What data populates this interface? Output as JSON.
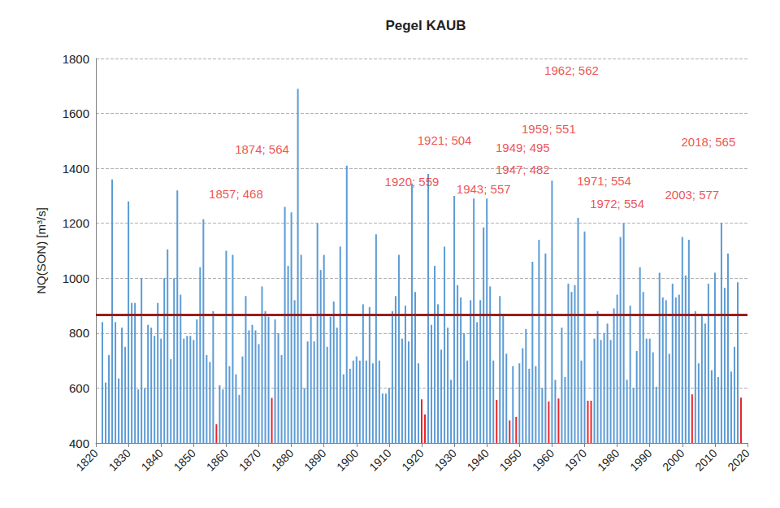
{
  "chart_data": {
    "type": "bar",
    "title": "Pegel KAUB",
    "y_label": "NQ(SON) [m³/s]",
    "xlim": [
      1820,
      2020
    ],
    "xticks": [
      1820,
      1830,
      1840,
      1850,
      1860,
      1870,
      1880,
      1890,
      1900,
      1910,
      1920,
      1930,
      1940,
      1950,
      1960,
      1970,
      1980,
      1990,
      2000,
      2010,
      2020
    ],
    "ylim": [
      400,
      1800
    ],
    "yticks": [
      400,
      600,
      800,
      1000,
      1200,
      1400,
      1600,
      1800
    ],
    "grid": true,
    "x": [
      1822,
      1823,
      1824,
      1825,
      1826,
      1827,
      1828,
      1829,
      1830,
      1831,
      1832,
      1833,
      1834,
      1835,
      1836,
      1837,
      1838,
      1839,
      1840,
      1841,
      1842,
      1843,
      1844,
      1845,
      1846,
      1847,
      1848,
      1849,
      1850,
      1851,
      1852,
      1853,
      1854,
      1855,
      1856,
      1857,
      1858,
      1859,
      1860,
      1861,
      1862,
      1863,
      1864,
      1865,
      1866,
      1867,
      1868,
      1869,
      1870,
      1871,
      1872,
      1873,
      1874,
      1875,
      1876,
      1877,
      1878,
      1879,
      1880,
      1881,
      1882,
      1883,
      1884,
      1885,
      1886,
      1887,
      1888,
      1889,
      1890,
      1891,
      1892,
      1893,
      1894,
      1895,
      1896,
      1897,
      1898,
      1899,
      1900,
      1901,
      1902,
      1903,
      1904,
      1905,
      1906,
      1907,
      1908,
      1909,
      1910,
      1911,
      1912,
      1913,
      1914,
      1915,
      1916,
      1917,
      1918,
      1919,
      1920,
      1921,
      1922,
      1923,
      1924,
      1925,
      1926,
      1927,
      1928,
      1929,
      1930,
      1931,
      1932,
      1933,
      1934,
      1935,
      1936,
      1937,
      1938,
      1939,
      1940,
      1941,
      1942,
      1943,
      1944,
      1945,
      1946,
      1947,
      1948,
      1949,
      1950,
      1951,
      1952,
      1953,
      1954,
      1955,
      1956,
      1957,
      1958,
      1959,
      1960,
      1961,
      1962,
      1963,
      1964,
      1965,
      1966,
      1967,
      1968,
      1969,
      1970,
      1971,
      1972,
      1973,
      1974,
      1975,
      1976,
      1977,
      1978,
      1979,
      1980,
      1981,
      1982,
      1983,
      1984,
      1985,
      1986,
      1987,
      1988,
      1989,
      1990,
      1991,
      1992,
      1993,
      1994,
      1995,
      1996,
      1997,
      1998,
      1999,
      2000,
      2001,
      2002,
      2003,
      2004,
      2005,
      2006,
      2007,
      2008,
      2009,
      2010,
      2011,
      2012,
      2013,
      2014,
      2015,
      2016,
      2017,
      2018
    ],
    "values": [
      840,
      620,
      720,
      1360,
      840,
      635,
      820,
      750,
      1280,
      910,
      910,
      595,
      1000,
      600,
      830,
      820,
      790,
      910,
      780,
      1000,
      1105,
      705,
      1000,
      1320,
      940,
      780,
      790,
      790,
      775,
      850,
      1040,
      1215,
      720,
      695,
      880,
      468,
      610,
      595,
      1100,
      680,
      1085,
      650,
      575,
      715,
      935,
      810,
      830,
      810,
      760,
      970,
      880,
      860,
      564,
      850,
      800,
      720,
      1260,
      1045,
      1240,
      920,
      1690,
      1085,
      600,
      770,
      860,
      770,
      1200,
      1030,
      1085,
      750,
      860,
      915,
      820,
      1115,
      650,
      1410,
      670,
      700,
      715,
      700,
      905,
      700,
      895,
      690,
      1160,
      700,
      580,
      580,
      600,
      880,
      935,
      1085,
      780,
      900,
      770,
      1345,
      950,
      690,
      559,
      504,
      1380,
      830,
      1045,
      905,
      740,
      1115,
      820,
      630,
      1300,
      975,
      930,
      800,
      700,
      920,
      1290,
      840,
      920,
      1185,
      1290,
      970,
      700,
      557,
      935,
      870,
      725,
      482,
      680,
      495,
      690,
      745,
      815,
      670,
      1060,
      680,
      1140,
      600,
      1090,
      551,
      1355,
      630,
      562,
      820,
      640,
      980,
      950,
      975,
      1220,
      700,
      1170,
      554,
      554,
      780,
      880,
      775,
      800,
      835,
      775,
      890,
      940,
      1150,
      1200,
      630,
      900,
      600,
      735,
      1040,
      950,
      780,
      780,
      730,
      605,
      1020,
      930,
      920,
      725,
      980,
      930,
      940,
      1150,
      1010,
      1140,
      577,
      880,
      690,
      870,
      835,
      980,
      665,
      1020,
      640,
      1200,
      965,
      1090,
      660,
      750,
      985,
      565
    ],
    "colors": [
      "#5b9bd5",
      "#5b9bd5",
      "#5b9bd5",
      "#5b9bd5",
      "#5b9bd5",
      "#5b9bd5",
      "#5b9bd5",
      "#5b9bd5",
      "#5b9bd5",
      "#5b9bd5",
      "#5b9bd5",
      "#5b9bd5",
      "#5b9bd5",
      "#5b9bd5",
      "#5b9bd5",
      "#5b9bd5",
      "#5b9bd5",
      "#5b9bd5",
      "#5b9bd5",
      "#5b9bd5",
      "#5b9bd5",
      "#5b9bd5",
      "#5b9bd5",
      "#5b9bd5",
      "#5b9bd5",
      "#5b9bd5",
      "#5b9bd5",
      "#5b9bd5",
      "#5b9bd5",
      "#5b9bd5",
      "#5b9bd5",
      "#5b9bd5",
      "#5b9bd5",
      "#5b9bd5",
      "#5b9bd5",
      "#e8262a",
      "#5b9bd5",
      "#5b9bd5",
      "#5b9bd5",
      "#5b9bd5",
      "#5b9bd5",
      "#5b9bd5",
      "#5b9bd5",
      "#5b9bd5",
      "#5b9bd5",
      "#5b9bd5",
      "#5b9bd5",
      "#5b9bd5",
      "#5b9bd5",
      "#5b9bd5",
      "#5b9bd5",
      "#5b9bd5",
      "#e8262a",
      "#5b9bd5",
      "#5b9bd5",
      "#5b9bd5",
      "#5b9bd5",
      "#5b9bd5",
      "#5b9bd5",
      "#5b9bd5",
      "#5b9bd5",
      "#5b9bd5",
      "#5b9bd5",
      "#5b9bd5",
      "#5b9bd5",
      "#5b9bd5",
      "#5b9bd5",
      "#5b9bd5",
      "#5b9bd5",
      "#5b9bd5",
      "#5b9bd5",
      "#5b9bd5",
      "#5b9bd5",
      "#5b9bd5",
      "#5b9bd5",
      "#5b9bd5",
      "#5b9bd5",
      "#5b9bd5",
      "#5b9bd5",
      "#5b9bd5",
      "#5b9bd5",
      "#5b9bd5",
      "#5b9bd5",
      "#5b9bd5",
      "#5b9bd5",
      "#5b9bd5",
      "#5b9bd5",
      "#5b9bd5",
      "#5b9bd5",
      "#5b9bd5",
      "#5b9bd5",
      "#5b9bd5",
      "#5b9bd5",
      "#5b9bd5",
      "#5b9bd5",
      "#5b9bd5",
      "#5b9bd5",
      "#5b9bd5",
      "#e8262a",
      "#e8262a",
      "#5b9bd5",
      "#5b9bd5",
      "#5b9bd5",
      "#5b9bd5",
      "#5b9bd5",
      "#5b9bd5",
      "#5b9bd5",
      "#5b9bd5",
      "#5b9bd5",
      "#5b9bd5",
      "#5b9bd5",
      "#5b9bd5",
      "#5b9bd5",
      "#5b9bd5",
      "#5b9bd5",
      "#5b9bd5",
      "#5b9bd5",
      "#5b9bd5",
      "#5b9bd5",
      "#5b9bd5",
      "#5b9bd5",
      "#e8262a",
      "#5b9bd5",
      "#5b9bd5",
      "#5b9bd5",
      "#e8262a",
      "#5b9bd5",
      "#e8262a",
      "#5b9bd5",
      "#5b9bd5",
      "#5b9bd5",
      "#5b9bd5",
      "#5b9bd5",
      "#5b9bd5",
      "#5b9bd5",
      "#5b9bd5",
      "#5b9bd5",
      "#e8262a",
      "#5b9bd5",
      "#5b9bd5",
      "#e8262a",
      "#5b9bd5",
      "#5b9bd5",
      "#5b9bd5",
      "#5b9bd5",
      "#5b9bd5",
      "#5b9bd5",
      "#5b9bd5",
      "#5b9bd5",
      "#e8262a",
      "#e8262a",
      "#5b9bd5",
      "#5b9bd5",
      "#5b9bd5",
      "#5b9bd5",
      "#5b9bd5",
      "#5b9bd5",
      "#5b9bd5",
      "#5b9bd5",
      "#5b9bd5",
      "#5b9bd5",
      "#5b9bd5",
      "#5b9bd5",
      "#5b9bd5",
      "#5b9bd5",
      "#5b9bd5",
      "#5b9bd5",
      "#5b9bd5",
      "#5b9bd5",
      "#5b9bd5",
      "#5b9bd5",
      "#5b9bd5",
      "#5b9bd5",
      "#5b9bd5",
      "#5b9bd5",
      "#5b9bd5",
      "#5b9bd5",
      "#5b9bd5",
      "#5b9bd5",
      "#5b9bd5",
      "#5b9bd5",
      "#e8262a",
      "#5b9bd5",
      "#5b9bd5",
      "#5b9bd5",
      "#5b9bd5",
      "#5b9bd5",
      "#5b9bd5",
      "#5b9bd5",
      "#5b9bd5",
      "#5b9bd5",
      "#5b9bd5",
      "#5b9bd5",
      "#5b9bd5",
      "#5b9bd5",
      "#5b9bd5",
      "#e8262a"
    ],
    "mean_line": {
      "value": 868,
      "color": "#9b1c1c"
    },
    "annotations": [
      {
        "text": "1857; 468",
        "x": 1863,
        "y": 1306
      },
      {
        "text": "1874; 564",
        "x": 1871,
        "y": 1469
      },
      {
        "text": "1920; 559",
        "x": 1917,
        "y": 1353
      },
      {
        "text": "1921; 504",
        "x": 1927,
        "y": 1504
      },
      {
        "text": "1943; 557",
        "x": 1939,
        "y": 1326
      },
      {
        "text": "1949; 495",
        "x": 1951,
        "y": 1477
      },
      {
        "text": "1947; 482",
        "x": 1951,
        "y": 1397
      },
      {
        "text": "1959; 551",
        "x": 1959,
        "y": 1545
      },
      {
        "text": "1962; 562",
        "x": 1966,
        "y": 1756
      },
      {
        "text": "1971; 554",
        "x": 1976,
        "y": 1356
      },
      {
        "text": "1972; 554",
        "x": 1980,
        "y": 1273
      },
      {
        "text": "2003; 577",
        "x": 2003,
        "y": 1303
      },
      {
        "text": "2018; 565",
        "x": 2008,
        "y": 1498
      }
    ],
    "annotation_color": "#e8262a"
  }
}
